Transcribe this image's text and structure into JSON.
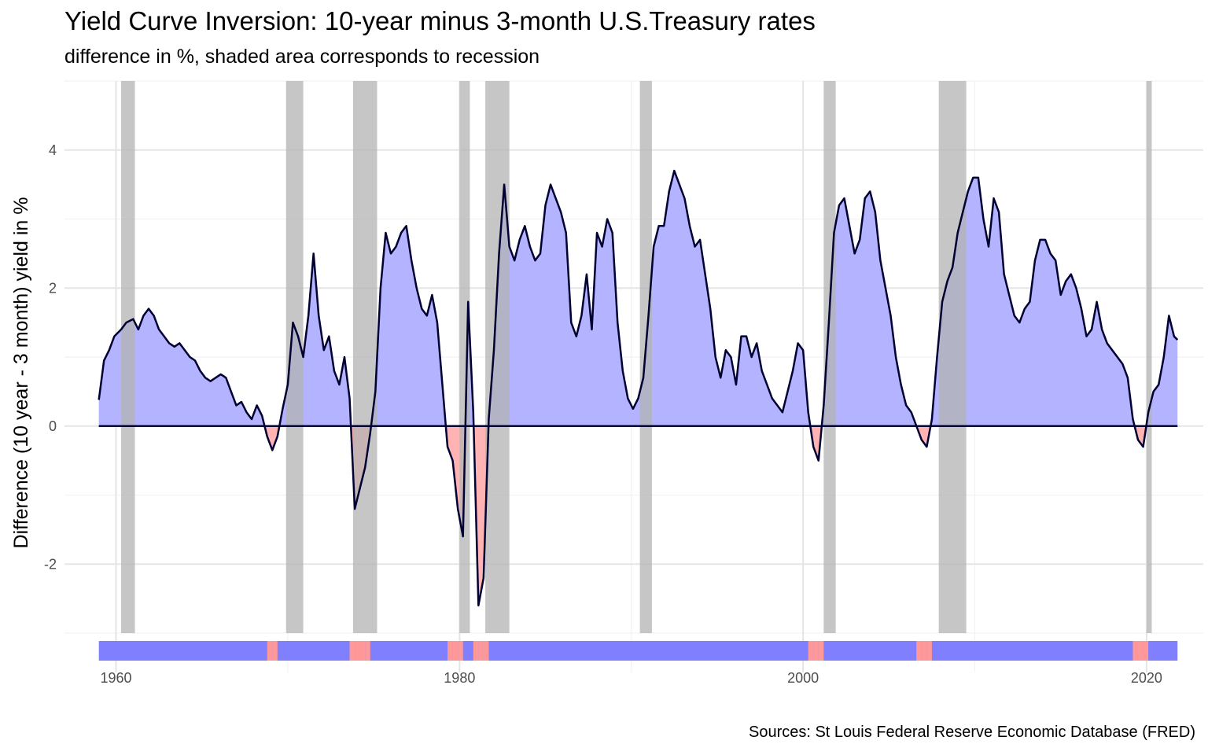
{
  "chart_data": {
    "type": "area",
    "title": "Yield Curve Inversion: 10-year minus 3-month U.S.Treasury rates",
    "subtitle": "difference in %, shaded area corresponds to recession",
    "caption": "Sources: St Louis Federal Reserve Economic Database (FRED)",
    "xlabel": "",
    "ylabel": "Difference (10 year - 3 month) yield in %",
    "xlim": [
      1957,
      2023.3
    ],
    "ylim": [
      -3.0,
      5.0
    ],
    "x_ticks": [
      "1960",
      "1980",
      "2000",
      "2020"
    ],
    "y_ticks": [
      "-2",
      "0",
      "2",
      "4"
    ],
    "grid": true,
    "colors": {
      "positive_fill": "#b3b3ff",
      "negative_fill": "#ffb3b3",
      "line": "#000033",
      "recession": "#b3b3b3",
      "strip_positive": "#8080ff",
      "strip_negative": "#ff9999"
    },
    "recessions": [
      [
        1960.3,
        1961.1
      ],
      [
        1969.9,
        1970.9
      ],
      [
        1973.8,
        1975.2
      ],
      [
        1980.0,
        1980.6
      ],
      [
        1981.5,
        1982.9
      ],
      [
        1990.5,
        1991.2
      ],
      [
        2001.2,
        2001.9
      ],
      [
        2007.9,
        2009.5
      ],
      [
        2020.0,
        2020.3
      ]
    ],
    "series": [
      {
        "values": [
          [
            1959.0,
            0.38
          ],
          [
            1959.3,
            0.95
          ],
          [
            1959.6,
            1.1
          ],
          [
            1959.9,
            1.3
          ],
          [
            1960.3,
            1.4
          ],
          [
            1960.6,
            1.5
          ],
          [
            1961.0,
            1.55
          ],
          [
            1961.3,
            1.4
          ],
          [
            1961.6,
            1.6
          ],
          [
            1961.9,
            1.7
          ],
          [
            1962.2,
            1.6
          ],
          [
            1962.5,
            1.4
          ],
          [
            1962.8,
            1.3
          ],
          [
            1963.1,
            1.2
          ],
          [
            1963.4,
            1.15
          ],
          [
            1963.7,
            1.2
          ],
          [
            1964.0,
            1.1
          ],
          [
            1964.3,
            1.0
          ],
          [
            1964.6,
            0.95
          ],
          [
            1964.9,
            0.8
          ],
          [
            1965.2,
            0.7
          ],
          [
            1965.5,
            0.65
          ],
          [
            1965.8,
            0.7
          ],
          [
            1966.1,
            0.75
          ],
          [
            1966.4,
            0.7
          ],
          [
            1966.7,
            0.5
          ],
          [
            1967.0,
            0.3
          ],
          [
            1967.3,
            0.35
          ],
          [
            1967.6,
            0.2
          ],
          [
            1967.9,
            0.1
          ],
          [
            1968.2,
            0.3
          ],
          [
            1968.5,
            0.15
          ],
          [
            1968.8,
            -0.15
          ],
          [
            1969.1,
            -0.35
          ],
          [
            1969.4,
            -0.15
          ],
          [
            1969.7,
            0.25
          ],
          [
            1970.0,
            0.6
          ],
          [
            1970.3,
            1.5
          ],
          [
            1970.6,
            1.3
          ],
          [
            1970.9,
            1.0
          ],
          [
            1971.2,
            1.6
          ],
          [
            1971.5,
            2.5
          ],
          [
            1971.8,
            1.6
          ],
          [
            1972.1,
            1.1
          ],
          [
            1972.4,
            1.3
          ],
          [
            1972.7,
            0.8
          ],
          [
            1973.0,
            0.6
          ],
          [
            1973.3,
            1.0
          ],
          [
            1973.6,
            0.4
          ],
          [
            1973.9,
            -1.2
          ],
          [
            1974.2,
            -0.9
          ],
          [
            1974.5,
            -0.6
          ],
          [
            1974.8,
            -0.1
          ],
          [
            1975.1,
            0.5
          ],
          [
            1975.4,
            2.0
          ],
          [
            1975.7,
            2.8
          ],
          [
            1976.0,
            2.5
          ],
          [
            1976.3,
            2.6
          ],
          [
            1976.6,
            2.8
          ],
          [
            1976.9,
            2.9
          ],
          [
            1977.2,
            2.4
          ],
          [
            1977.5,
            2.0
          ],
          [
            1977.8,
            1.7
          ],
          [
            1978.1,
            1.6
          ],
          [
            1978.4,
            1.9
          ],
          [
            1978.7,
            1.5
          ],
          [
            1979.0,
            0.6
          ],
          [
            1979.3,
            -0.3
          ],
          [
            1979.6,
            -0.5
          ],
          [
            1979.9,
            -1.2
          ],
          [
            1980.2,
            -1.6
          ],
          [
            1980.5,
            1.8
          ],
          [
            1980.8,
            0.2
          ],
          [
            1981.1,
            -2.6
          ],
          [
            1981.4,
            -2.2
          ],
          [
            1981.7,
            0.1
          ],
          [
            1982.0,
            1.1
          ],
          [
            1982.3,
            2.5
          ],
          [
            1982.6,
            3.5
          ],
          [
            1982.9,
            2.6
          ],
          [
            1983.2,
            2.4
          ],
          [
            1983.5,
            2.7
          ],
          [
            1983.8,
            2.9
          ],
          [
            1984.1,
            2.6
          ],
          [
            1984.4,
            2.4
          ],
          [
            1984.7,
            2.5
          ],
          [
            1985.0,
            3.2
          ],
          [
            1985.3,
            3.5
          ],
          [
            1985.6,
            3.3
          ],
          [
            1985.9,
            3.1
          ],
          [
            1986.2,
            2.8
          ],
          [
            1986.5,
            1.5
          ],
          [
            1986.8,
            1.3
          ],
          [
            1987.1,
            1.6
          ],
          [
            1987.4,
            2.2
          ],
          [
            1987.7,
            1.4
          ],
          [
            1988.0,
            2.8
          ],
          [
            1988.3,
            2.6
          ],
          [
            1988.6,
            3.0
          ],
          [
            1988.9,
            2.8
          ],
          [
            1989.2,
            1.5
          ],
          [
            1989.5,
            0.8
          ],
          [
            1989.8,
            0.4
          ],
          [
            1990.1,
            0.25
          ],
          [
            1990.4,
            0.4
          ],
          [
            1990.7,
            0.7
          ],
          [
            1991.0,
            1.6
          ],
          [
            1991.3,
            2.6
          ],
          [
            1991.6,
            2.9
          ],
          [
            1991.9,
            2.9
          ],
          [
            1992.2,
            3.4
          ],
          [
            1992.5,
            3.7
          ],
          [
            1992.8,
            3.5
          ],
          [
            1993.1,
            3.3
          ],
          [
            1993.4,
            2.9
          ],
          [
            1993.7,
            2.6
          ],
          [
            1994.0,
            2.7
          ],
          [
            1994.3,
            2.2
          ],
          [
            1994.6,
            1.7
          ],
          [
            1994.9,
            1.0
          ],
          [
            1995.2,
            0.7
          ],
          [
            1995.5,
            1.1
          ],
          [
            1995.8,
            1.0
          ],
          [
            1996.1,
            0.6
          ],
          [
            1996.4,
            1.3
          ],
          [
            1996.7,
            1.3
          ],
          [
            1997.0,
            1.0
          ],
          [
            1997.3,
            1.2
          ],
          [
            1997.6,
            0.8
          ],
          [
            1997.9,
            0.6
          ],
          [
            1998.2,
            0.4
          ],
          [
            1998.5,
            0.3
          ],
          [
            1998.8,
            0.2
          ],
          [
            1999.1,
            0.5
          ],
          [
            1999.4,
            0.8
          ],
          [
            1999.7,
            1.2
          ],
          [
            2000.0,
            1.1
          ],
          [
            2000.3,
            0.2
          ],
          [
            2000.6,
            -0.3
          ],
          [
            2000.9,
            -0.5
          ],
          [
            2001.2,
            0.3
          ],
          [
            2001.5,
            1.5
          ],
          [
            2001.8,
            2.8
          ],
          [
            2002.1,
            3.2
          ],
          [
            2002.4,
            3.3
          ],
          [
            2002.7,
            2.9
          ],
          [
            2003.0,
            2.5
          ],
          [
            2003.3,
            2.7
          ],
          [
            2003.6,
            3.3
          ],
          [
            2003.9,
            3.4
          ],
          [
            2004.2,
            3.1
          ],
          [
            2004.5,
            2.4
          ],
          [
            2004.8,
            2.0
          ],
          [
            2005.1,
            1.6
          ],
          [
            2005.4,
            1.0
          ],
          [
            2005.7,
            0.6
          ],
          [
            2006.0,
            0.3
          ],
          [
            2006.3,
            0.2
          ],
          [
            2006.6,
            0.0
          ],
          [
            2006.9,
            -0.2
          ],
          [
            2007.2,
            -0.3
          ],
          [
            2007.5,
            0.1
          ],
          [
            2007.8,
            1.0
          ],
          [
            2008.1,
            1.8
          ],
          [
            2008.4,
            2.1
          ],
          [
            2008.7,
            2.3
          ],
          [
            2009.0,
            2.8
          ],
          [
            2009.3,
            3.1
          ],
          [
            2009.6,
            3.4
          ],
          [
            2009.9,
            3.6
          ],
          [
            2010.2,
            3.6
          ],
          [
            2010.5,
            3.0
          ],
          [
            2010.8,
            2.6
          ],
          [
            2011.1,
            3.3
          ],
          [
            2011.4,
            3.1
          ],
          [
            2011.7,
            2.2
          ],
          [
            2012.0,
            1.9
          ],
          [
            2012.3,
            1.6
          ],
          [
            2012.6,
            1.5
          ],
          [
            2012.9,
            1.7
          ],
          [
            2013.2,
            1.8
          ],
          [
            2013.5,
            2.4
          ],
          [
            2013.8,
            2.7
          ],
          [
            2014.1,
            2.7
          ],
          [
            2014.4,
            2.5
          ],
          [
            2014.7,
            2.4
          ],
          [
            2015.0,
            1.9
          ],
          [
            2015.3,
            2.1
          ],
          [
            2015.6,
            2.2
          ],
          [
            2015.9,
            2.0
          ],
          [
            2016.2,
            1.7
          ],
          [
            2016.5,
            1.3
          ],
          [
            2016.8,
            1.4
          ],
          [
            2017.1,
            1.8
          ],
          [
            2017.4,
            1.4
          ],
          [
            2017.7,
            1.2
          ],
          [
            2018.0,
            1.1
          ],
          [
            2018.3,
            1.0
          ],
          [
            2018.6,
            0.9
          ],
          [
            2018.9,
            0.7
          ],
          [
            2019.2,
            0.1
          ],
          [
            2019.5,
            -0.2
          ],
          [
            2019.8,
            -0.3
          ],
          [
            2020.1,
            0.2
          ],
          [
            2020.4,
            0.5
          ],
          [
            2020.7,
            0.6
          ],
          [
            2021.0,
            1.0
          ],
          [
            2021.3,
            1.6
          ],
          [
            2021.6,
            1.3
          ],
          [
            2021.8,
            1.25
          ]
        ]
      }
    ]
  }
}
